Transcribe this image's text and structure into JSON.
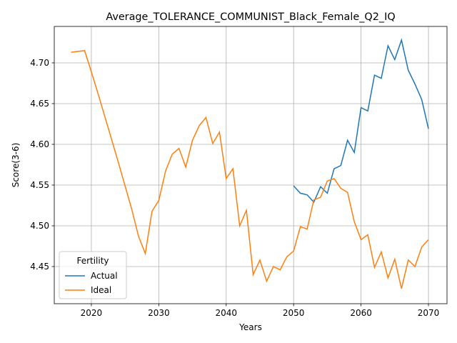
{
  "chart_data": {
    "type": "line",
    "title": "Average_TOLERANCE_COMMUNIST_Black_Female_Q2_IQ",
    "xlabel": "Years",
    "ylabel": "Score(3-6)",
    "x": [
      2017,
      2018,
      2019,
      2020,
      2021,
      2022,
      2023,
      2024,
      2025,
      2026,
      2027,
      2028,
      2029,
      2030,
      2031,
      2032,
      2033,
      2034,
      2035,
      2036,
      2037,
      2038,
      2039,
      2040,
      2041,
      2042,
      2043,
      2044,
      2045,
      2046,
      2047,
      2048,
      2049,
      2050,
      2051,
      2052,
      2053,
      2054,
      2055,
      2056,
      2057,
      2058,
      2059,
      2060,
      2061,
      2062,
      2063,
      2064,
      2065,
      2066,
      2067,
      2068,
      2069,
      2070
    ],
    "series": [
      {
        "name": "Actual",
        "color": "#1f77b4",
        "values": [
          null,
          null,
          null,
          null,
          null,
          null,
          null,
          null,
          null,
          null,
          null,
          null,
          null,
          null,
          null,
          null,
          null,
          null,
          null,
          null,
          null,
          null,
          null,
          null,
          null,
          null,
          null,
          null,
          null,
          null,
          null,
          null,
          null,
          4.549,
          4.54,
          4.538,
          4.529,
          4.548,
          4.54,
          4.57,
          4.574,
          4.605,
          4.59,
          4.645,
          4.641,
          4.685,
          4.681,
          4.721,
          4.704,
          4.728,
          4.691,
          4.674,
          4.655,
          4.619
        ]
      },
      {
        "name": "Ideal",
        "color": "#ff7f0e",
        "values": [
          4.713,
          4.714,
          4.715,
          4.689,
          4.662,
          4.634,
          4.606,
          4.578,
          4.549,
          4.52,
          4.487,
          4.466,
          4.518,
          4.531,
          4.567,
          4.588,
          4.595,
          4.572,
          4.605,
          4.623,
          4.633,
          4.601,
          4.615,
          4.558,
          4.57,
          4.5,
          4.519,
          4.44,
          4.458,
          4.432,
          4.45,
          4.446,
          4.462,
          4.469,
          4.499,
          4.496,
          4.532,
          4.535,
          4.555,
          4.558,
          4.546,
          4.541,
          4.505,
          4.483,
          4.489,
          4.449,
          4.468,
          4.436,
          4.459,
          4.423,
          4.458,
          4.45,
          4.474,
          4.483
        ]
      }
    ],
    "xlim": [
      2014.5,
      2072.75
    ],
    "xticks": [
      2020,
      2030,
      2040,
      2050,
      2060,
      2070
    ],
    "ylim": [
      4.4044,
      4.7447
    ],
    "yticks": [
      4.45,
      {
        "value": 4.5,
        "label": "4.50"
      },
      4.55,
      {
        "value": 4.6,
        "label": "4.60"
      },
      4.65,
      {
        "value": 4.7,
        "label": "4.70"
      }
    ],
    "grid": true,
    "legend_title": "Fertility",
    "legend_loc": "lower left"
  }
}
